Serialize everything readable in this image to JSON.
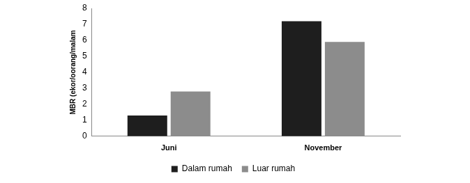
{
  "chart_data": {
    "type": "bar",
    "y_label": "MBR (ekor/oorang/malam",
    "categories": [
      "Juni",
      "November"
    ],
    "series": [
      {
        "name": "Dalam rumah",
        "color": "#1e1e1e",
        "values": [
          1.3,
          7.2
        ]
      },
      {
        "name": "Luar rumah",
        "color": "#8c8c8c",
        "values": [
          2.8,
          5.9
        ]
      }
    ],
    "ylim": [
      0,
      8
    ],
    "yticks": [
      0,
      1,
      2,
      3,
      4,
      5,
      6,
      7,
      8
    ],
    "grid": false,
    "legend": "bottom"
  }
}
